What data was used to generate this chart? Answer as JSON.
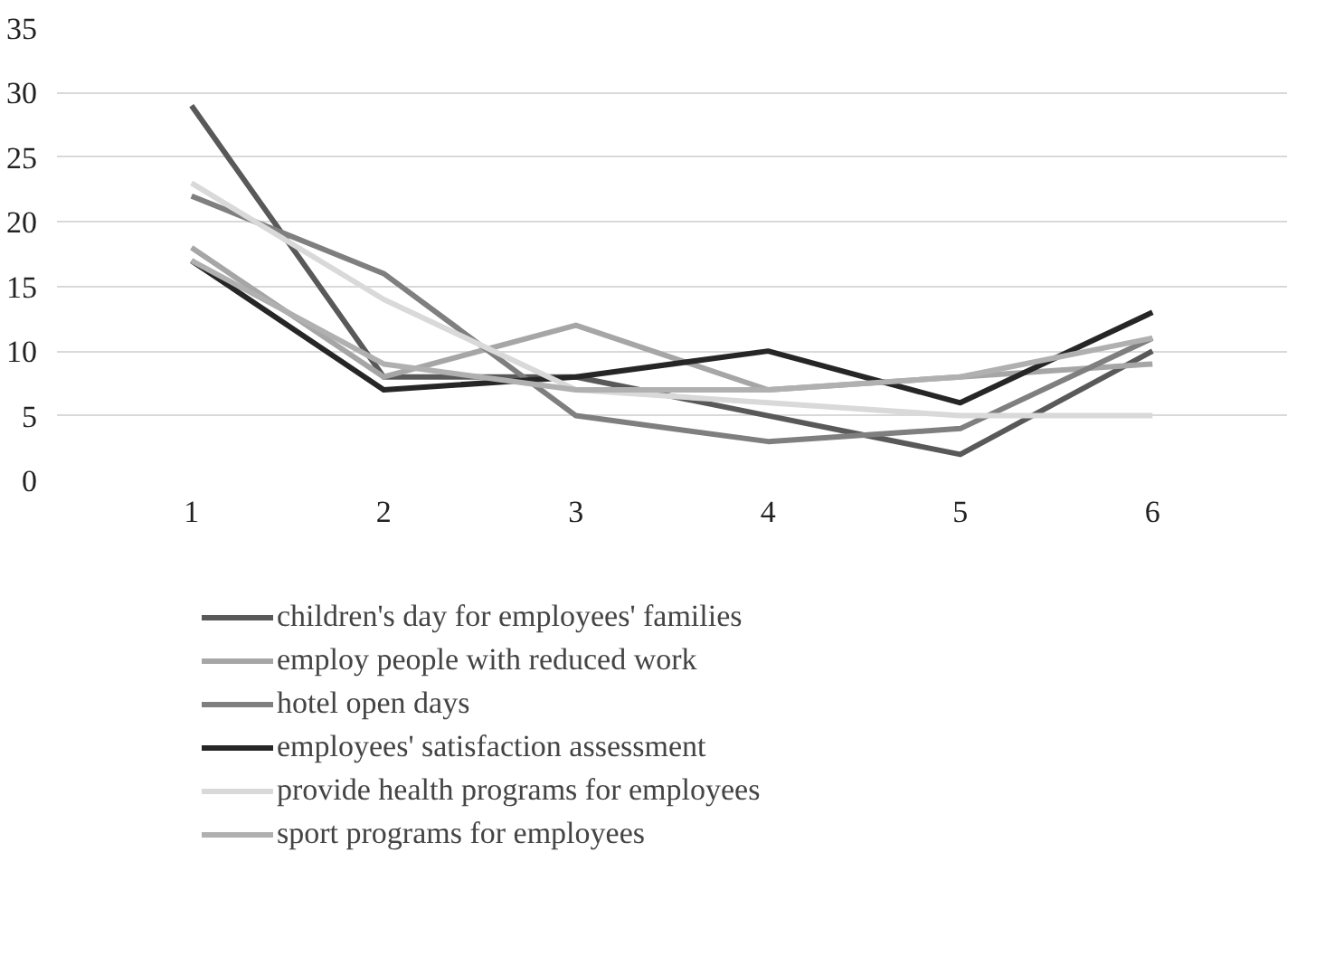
{
  "chart_data": {
    "type": "line",
    "x": [
      1,
      2,
      3,
      4,
      5,
      6
    ],
    "xlim": [
      0.3,
      6.7
    ],
    "xticks": [
      1,
      2,
      3,
      4,
      5,
      6
    ],
    "ylim": [
      0,
      35
    ],
    "yticks": [
      0,
      5,
      10,
      15,
      20,
      25,
      30,
      35
    ],
    "grid": "y",
    "legend": "bottom",
    "series": [
      {
        "name": "children's day for employees' families",
        "color": "#595959",
        "values": [
          29,
          8,
          8,
          5,
          2,
          10
        ]
      },
      {
        "name": "employ people with reduced work",
        "color": "#a6a6a6",
        "values": [
          18,
          8,
          12,
          7,
          8,
          9
        ]
      },
      {
        "name": "hotel open days",
        "color": "#7f7f7f",
        "values": [
          22,
          16,
          5,
          3,
          4,
          11
        ]
      },
      {
        "name": "employees' satisfaction assessment",
        "color": "#262626",
        "values": [
          17,
          7,
          8,
          10,
          6,
          13
        ]
      },
      {
        "name": "provide health programs for employees",
        "color": "#d9d9d9",
        "values": [
          23,
          14,
          7,
          6,
          5,
          5
        ]
      },
      {
        "name": "sport programs for employees",
        "color": "#b0b0b0",
        "values": [
          17,
          9,
          7,
          7,
          8,
          11
        ]
      }
    ]
  }
}
